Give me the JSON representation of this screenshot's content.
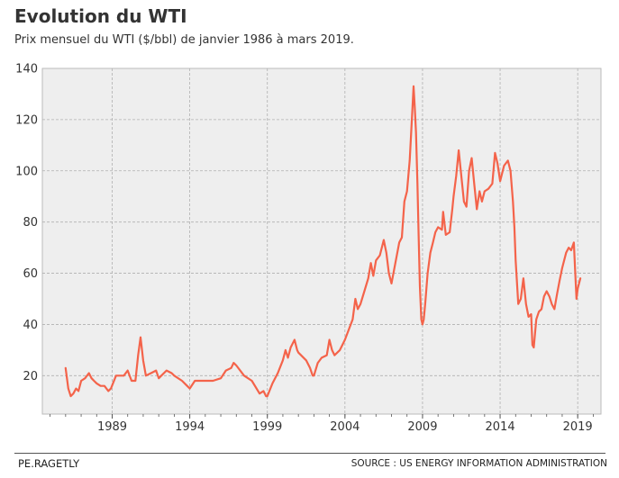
{
  "header": {
    "title": "Evolution du WTI",
    "subtitle": "Prix mensuel du WTI ($/bbl) de janvier 1986 à mars 2019."
  },
  "footer": {
    "author": "PE.RAGETLY",
    "source": "SOURCE : US ENERGY INFORMATION ADMINISTRATION"
  },
  "colors": {
    "line": "#f4634a",
    "plot_background": "#eeeeee",
    "grid": "#b0b0b0"
  },
  "chart_data": {
    "type": "line",
    "title": "Evolution du WTI",
    "subtitle": "Prix mensuel du WTI ($/bbl) de janvier 1986 à mars 2019.",
    "xlabel": "",
    "ylabel": "",
    "xlim": [
      1984.5,
      2020.5
    ],
    "ylim": [
      5,
      140
    ],
    "xticks": [
      1989,
      1994,
      1999,
      2004,
      2009,
      2014,
      2019
    ],
    "yticks": [
      20,
      40,
      60,
      80,
      100,
      120,
      140
    ],
    "grid": true,
    "legend": "none",
    "series": [
      {
        "x": [
          1986.0,
          1986.17,
          1986.33,
          1986.5,
          1986.67,
          1986.83,
          1987.0,
          1987.25,
          1987.5,
          1987.67,
          1987.83,
          1988.0,
          1988.25,
          1988.5,
          1988.75,
          1988.92,
          1989.25,
          1989.5,
          1989.75,
          1990.0,
          1990.25,
          1990.5,
          1990.67,
          1990.83,
          1991.0,
          1991.17,
          1991.5,
          1991.83,
          1992.0,
          1992.5,
          1992.83,
          1993.0,
          1993.5,
          1993.83,
          1994.0,
          1994.33,
          1994.67,
          1995.0,
          1995.5,
          1996.0,
          1996.33,
          1996.67,
          1996.83,
          1997.0,
          1997.5,
          1998.0,
          1998.5,
          1998.75,
          1998.92,
          1999.0,
          1999.33,
          1999.67,
          2000.0,
          2000.17,
          2000.33,
          2000.5,
          2000.75,
          2000.92,
          2001.0,
          2001.5,
          2001.75,
          2001.92,
          2002.0,
          2002.25,
          2002.5,
          2002.83,
          2003.0,
          2003.17,
          2003.33,
          2003.67,
          2004.0,
          2004.25,
          2004.5,
          2004.67,
          2004.83,
          2005.0,
          2005.25,
          2005.5,
          2005.67,
          2005.83,
          2006.0,
          2006.25,
          2006.5,
          2006.67,
          2006.83,
          2007.0,
          2007.25,
          2007.5,
          2007.67,
          2007.83,
          2008.0,
          2008.17,
          2008.33,
          2008.42,
          2008.5,
          2008.58,
          2008.67,
          2008.75,
          2008.83,
          2008.92,
          2009.0,
          2009.08,
          2009.17,
          2009.33,
          2009.5,
          2009.67,
          2009.83,
          2010.0,
          2010.25,
          2010.33,
          2010.5,
          2010.75,
          2010.92,
          2011.0,
          2011.17,
          2011.33,
          2011.5,
          2011.67,
          2011.83,
          2012.0,
          2012.17,
          2012.33,
          2012.5,
          2012.67,
          2012.83,
          2013.0,
          2013.25,
          2013.5,
          2013.67,
          2013.83,
          2014.0,
          2014.25,
          2014.5,
          2014.67,
          2014.83,
          2014.92,
          2015.0,
          2015.17,
          2015.33,
          2015.5,
          2015.67,
          2015.83,
          2016.0,
          2016.08,
          2016.17,
          2016.33,
          2016.5,
          2016.67,
          2016.83,
          2017.0,
          2017.17,
          2017.33,
          2017.5,
          2017.67,
          2017.83,
          2018.0,
          2018.25,
          2018.42,
          2018.58,
          2018.75,
          2018.83,
          2018.92,
          2019.0,
          2019.17
        ],
        "values": [
          23,
          15,
          12,
          13,
          15,
          14,
          18,
          19,
          21,
          19,
          18,
          17,
          16,
          16,
          14,
          15,
          20,
          20,
          20,
          22,
          18,
          18,
          28,
          35,
          26,
          20,
          21,
          22,
          19,
          22,
          21,
          20,
          18,
          16,
          15,
          18,
          18,
          18,
          18,
          19,
          22,
          23,
          25,
          24,
          20,
          18,
          13,
          14,
          12,
          12,
          17,
          21,
          26,
          30,
          27,
          31,
          34,
          30,
          29,
          26,
          23,
          20,
          20,
          25,
          27,
          28,
          34,
          30,
          28,
          30,
          34,
          38,
          42,
          50,
          46,
          48,
          53,
          58,
          64,
          59,
          65,
          67,
          73,
          68,
          60,
          56,
          64,
          72,
          74,
          88,
          92,
          104,
          122,
          133,
          125,
          115,
          95,
          75,
          55,
          42,
          40,
          42,
          48,
          60,
          68,
          72,
          76,
          78,
          77,
          84,
          75,
          76,
          85,
          90,
          98,
          108,
          98,
          88,
          86,
          100,
          105,
          95,
          85,
          92,
          88,
          92,
          93,
          95,
          107,
          103,
          96,
          102,
          104,
          100,
          88,
          78,
          65,
          48,
          50,
          58,
          48,
          43,
          44,
          32,
          31,
          42,
          45,
          46,
          51,
          53,
          51,
          48,
          46,
          52,
          57,
          62,
          68,
          70,
          69,
          72,
          62,
          50,
          54,
          58
        ]
      }
    ]
  }
}
